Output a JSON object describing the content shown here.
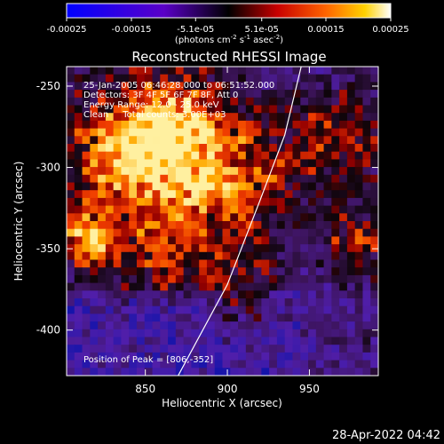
{
  "chart_data": {
    "type": "heatmap",
    "title": "Reconstructed RHESSI Image",
    "xlabel": "Heliocentric X (arcsec)",
    "ylabel": "Heliocentric Y (arcsec)",
    "xlim": [
      802,
      992
    ],
    "ylim": [
      -428,
      -238
    ],
    "x_ticks": [
      850,
      900,
      950
    ],
    "y_ticks": [
      -250,
      -300,
      -350,
      -400
    ],
    "colorbar": {
      "min": -0.00025,
      "max": 0.00025,
      "tick_labels": [
        "-0.00025",
        "-0.00015",
        "-5.1e-05",
        "5.1e-05",
        "0.00015",
        "0.00025"
      ],
      "tick_values": [
        -0.00025,
        -0.00015,
        -5.1e-05,
        5.1e-05,
        0.00015,
        0.00025
      ],
      "unit_label": "(photons cm",
      "unit_sup1": "-2",
      "unit_mid": " s",
      "unit_sup2": "-1",
      "unit_mid2": " asec",
      "unit_sup3": "-2",
      "unit_end": ")"
    },
    "annotations": [
      "25-Jan-2005 06:46:28.000 to 06:51:52.000",
      "Detectors: 3F 4F 5F 6F 7F 8F, Att 0",
      "Energy Range: 12.0 - 25.0 keV",
      "Clean     Total counts: 3.00E+03"
    ],
    "peak_label": "Position of Peak = [806,-352]",
    "peak": [
      806,
      -352
    ],
    "limb_curve": [
      [
        870,
        -428
      ],
      [
        900,
        -372
      ],
      [
        920,
        -320
      ],
      [
        935,
        -280
      ],
      [
        945,
        -238
      ]
    ],
    "grid": false,
    "legend": "none"
  },
  "footer": {
    "date": "28-Apr-2022 04:42"
  }
}
